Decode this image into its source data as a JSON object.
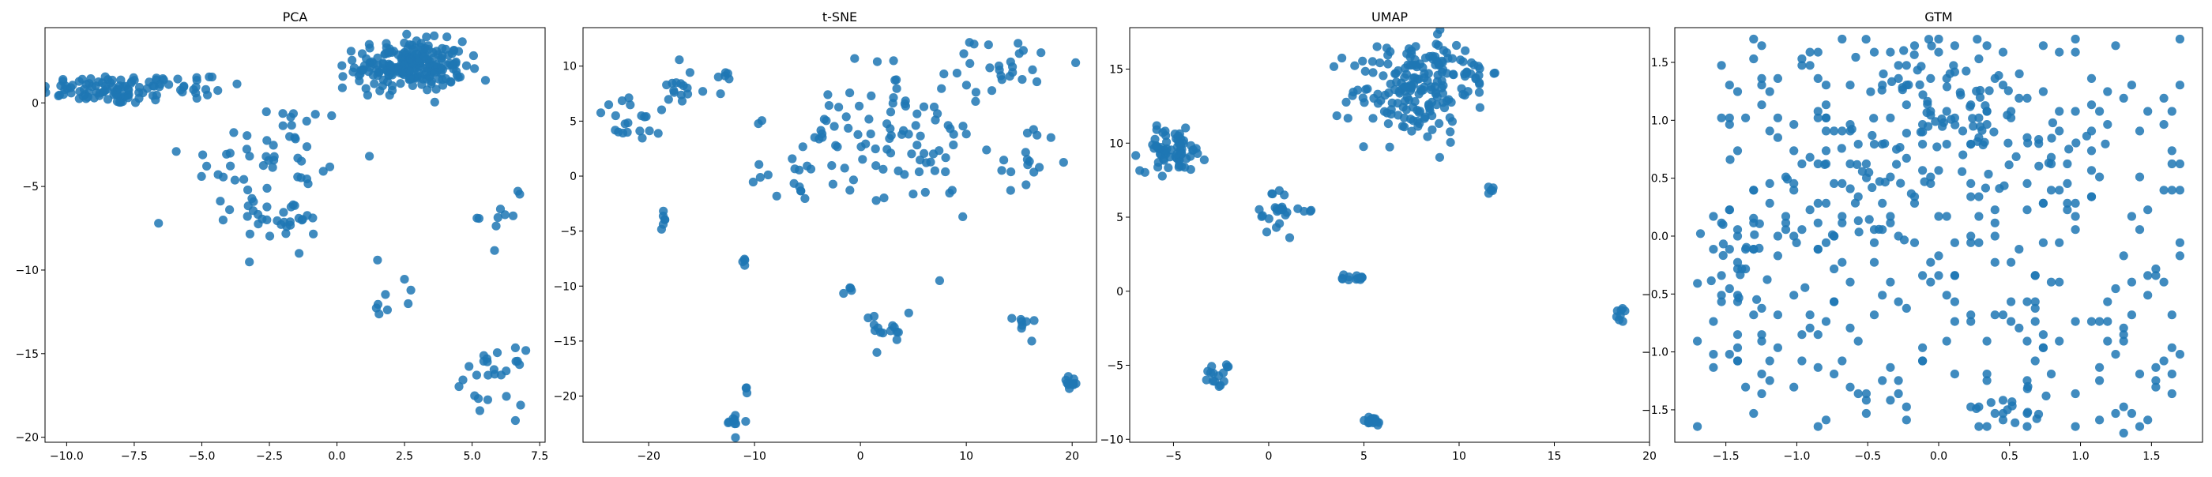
{
  "figure": {
    "point_color": "#1f77b4",
    "point_opacity": 0.85
  },
  "chart_data": [
    {
      "type": "scatter",
      "title": "PCA",
      "xlim": [
        -10.8,
        7.7
      ],
      "ylim": [
        -20.3,
        4.5
      ],
      "xticks": [
        -10.0,
        -7.5,
        -5.0,
        -2.5,
        0.0,
        2.5,
        5.0,
        7.5
      ],
      "yticks": [
        0,
        -5,
        -10,
        -15,
        -20
      ],
      "xtick_decimals": 1,
      "clusters": [
        {
          "cx": -8.4,
          "cy": 0.8,
          "sx": 1.3,
          "sy": 0.45,
          "n": 90
        },
        {
          "cx": -5.5,
          "cy": 1.0,
          "sx": 1.0,
          "sy": 0.6,
          "n": 20
        },
        {
          "cx": -2.5,
          "cy": -3.5,
          "sx": 1.6,
          "sy": 2.0,
          "n": 55
        },
        {
          "cx": -2.0,
          "cy": -7.0,
          "sx": 0.8,
          "sy": 0.6,
          "n": 25
        },
        {
          "cx": 2.7,
          "cy": 2.2,
          "sx": 1.0,
          "sy": 0.75,
          "n": 220
        },
        {
          "cx": 1.8,
          "cy": -11.8,
          "sx": 0.6,
          "sy": 0.7,
          "n": 8
        },
        {
          "cx": 6.2,
          "cy": -6.5,
          "sx": 0.45,
          "sy": 1.0,
          "n": 10
        },
        {
          "cx": 5.8,
          "cy": -16.4,
          "sx": 0.55,
          "sy": 0.8,
          "n": 25
        }
      ],
      "outliers": [
        [
          -6.6,
          -7.2
        ],
        [
          6.6,
          -19.0
        ],
        [
          0.2,
          0.9
        ],
        [
          1.5,
          -9.4
        ],
        [
          -1.4,
          -9.0
        ]
      ]
    },
    {
      "type": "scatter",
      "title": "t-SNE",
      "xlim": [
        -26.2,
        22.3
      ],
      "ylim": [
        -24.2,
        13.5
      ],
      "xticks": [
        -20,
        -10,
        0,
        10,
        20
      ],
      "yticks": [
        10,
        5,
        0,
        -5,
        -10,
        -15,
        -20
      ],
      "xtick_decimals": 0,
      "clusters": [
        {
          "cx": -21,
          "cy": 5.0,
          "sx": 2.2,
          "sy": 1.0,
          "n": 20
        },
        {
          "cx": -17,
          "cy": 8.0,
          "sx": 1.2,
          "sy": 1.3,
          "n": 15
        },
        {
          "cx": -13,
          "cy": 8.5,
          "sx": 0.8,
          "sy": 0.6,
          "n": 6
        },
        {
          "cx": -18.2,
          "cy": -4.3,
          "sx": 0.4,
          "sy": 0.8,
          "n": 6
        },
        {
          "cx": -11.2,
          "cy": -7.6,
          "sx": 0.3,
          "sy": 0.6,
          "n": 4
        },
        {
          "cx": -11.8,
          "cy": -22.4,
          "sx": 0.5,
          "sy": 0.5,
          "n": 10
        },
        {
          "cx": -10.8,
          "cy": -19.5,
          "sx": 0.2,
          "sy": 0.2,
          "n": 3
        },
        {
          "cx": -6.0,
          "cy": 1.5,
          "sx": 2.0,
          "sy": 2.0,
          "n": 20
        },
        {
          "cx": 1.0,
          "cy": 4.0,
          "sx": 3.0,
          "sy": 3.2,
          "n": 60
        },
        {
          "cx": 9.0,
          "cy": 4.0,
          "sx": 3.0,
          "sy": 3.5,
          "n": 40
        },
        {
          "cx": 14.5,
          "cy": 10.5,
          "sx": 2.0,
          "sy": 1.0,
          "n": 20
        },
        {
          "cx": 16.0,
          "cy": 1.0,
          "sx": 1.3,
          "sy": 2.5,
          "n": 12
        },
        {
          "cx": -1.2,
          "cy": -10.5,
          "sx": 0.2,
          "sy": 0.2,
          "n": 4
        },
        {
          "cx": 1.5,
          "cy": -14.5,
          "sx": 1.5,
          "sy": 1.3,
          "n": 15
        },
        {
          "cx": 15.5,
          "cy": -13.5,
          "sx": 0.5,
          "sy": 0.5,
          "n": 8
        },
        {
          "cx": 19.8,
          "cy": -18.8,
          "sx": 0.4,
          "sy": 0.4,
          "n": 10
        }
      ],
      "outliers": []
    },
    {
      "type": "scatter",
      "title": "UMAP",
      "xlim": [
        -7.3,
        20.0
      ],
      "ylim": [
        -10.2,
        17.8
      ],
      "xticks": [
        -5,
        0,
        5,
        10,
        15,
        20
      ],
      "yticks": [
        15,
        10,
        5,
        0,
        -5,
        -10
      ],
      "xtick_decimals": 0,
      "clusters": [
        {
          "cx": -5.0,
          "cy": 9.5,
          "sx": 0.85,
          "sy": 0.7,
          "n": 70
        },
        {
          "cx": 7.5,
          "cy": 13.5,
          "sx": 1.6,
          "sy": 1.7,
          "n": 160
        },
        {
          "cx": 9.0,
          "cy": 16.0,
          "sx": 1.0,
          "sy": 0.6,
          "n": 20
        },
        {
          "cx": 10.5,
          "cy": 14.8,
          "sx": 0.6,
          "sy": 0.4,
          "n": 15
        },
        {
          "cx": 0.6,
          "cy": 5.3,
          "sx": 0.35,
          "sy": 0.9,
          "n": 20
        },
        {
          "cx": 2.0,
          "cy": 5.4,
          "sx": 0.2,
          "sy": 0.15,
          "n": 4
        },
        {
          "cx": 4.3,
          "cy": 0.9,
          "sx": 0.45,
          "sy": 0.15,
          "n": 12
        },
        {
          "cx": -2.7,
          "cy": -5.8,
          "sx": 0.25,
          "sy": 0.35,
          "n": 12
        },
        {
          "cx": -2.2,
          "cy": -5.0,
          "sx": 0.15,
          "sy": 0.15,
          "n": 3
        },
        {
          "cx": 5.4,
          "cy": -8.8,
          "sx": 0.3,
          "sy": 0.15,
          "n": 20
        },
        {
          "cx": 11.6,
          "cy": 6.8,
          "sx": 0.2,
          "sy": 0.2,
          "n": 5
        },
        {
          "cx": 18.6,
          "cy": -1.6,
          "sx": 0.2,
          "sy": 0.35,
          "n": 8
        }
      ],
      "outliers": [
        [
          -0.1,
          4.0
        ],
        [
          0.4,
          4.3
        ]
      ]
    },
    {
      "type": "scatter",
      "title": "GTM",
      "xlim": [
        -1.86,
        1.86
      ],
      "ylim": [
        -1.78,
        1.8
      ],
      "xticks": [
        -1.5,
        -1.0,
        -0.5,
        0.0,
        0.5,
        1.0,
        1.5
      ],
      "yticks": [
        1.5,
        1.0,
        0.5,
        0.0,
        -0.5,
        -1.0,
        -1.5
      ],
      "xtick_decimals": 1,
      "uniform": {
        "n": 380,
        "xrange": [
          -1.7,
          1.7
        ],
        "yrange": [
          -1.7,
          1.7
        ],
        "grid_step": 0.0567
      },
      "clusters": [
        {
          "cx": 0.0,
          "cy": 1.25,
          "sx": 0.25,
          "sy": 0.3,
          "n": 50
        },
        {
          "cx": -0.4,
          "cy": 0.5,
          "sx": 0.2,
          "sy": 0.2,
          "n": 25
        },
        {
          "cx": 0.5,
          "cy": 0.8,
          "sx": 0.3,
          "sy": 0.25,
          "n": 30
        },
        {
          "cx": -1.4,
          "cy": 0.0,
          "sx": 0.2,
          "sy": 0.35,
          "n": 20
        },
        {
          "cx": 0.6,
          "cy": -1.55,
          "sx": 0.15,
          "sy": 0.1,
          "n": 12
        }
      ],
      "outliers": []
    }
  ]
}
